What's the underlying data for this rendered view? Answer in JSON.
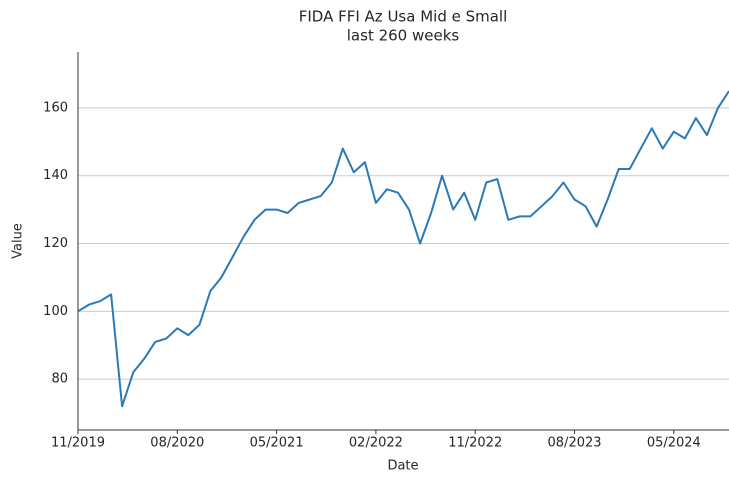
{
  "chart_data": {
    "type": "line",
    "title": "FIDA FFI Az Usa Mid e Small",
    "subtitle": "last 260 weeks",
    "x_label": "Date",
    "y_label": "Value",
    "x": [
      "2019-11",
      "2019-12",
      "2020-01",
      "2020-02",
      "2020-03",
      "2020-04",
      "2020-05",
      "2020-06",
      "2020-07",
      "2020-08",
      "2020-09",
      "2020-10",
      "2020-11",
      "2020-12",
      "2021-01",
      "2021-02",
      "2021-03",
      "2021-04",
      "2021-05",
      "2021-06",
      "2021-07",
      "2021-08",
      "2021-09",
      "2021-10",
      "2021-11",
      "2021-12",
      "2022-01",
      "2022-02",
      "2022-03",
      "2022-04",
      "2022-05",
      "2022-06",
      "2022-07",
      "2022-08",
      "2022-09",
      "2022-10",
      "2022-11",
      "2022-12",
      "2023-01",
      "2023-02",
      "2023-03",
      "2023-04",
      "2023-05",
      "2023-06",
      "2023-07",
      "2023-08",
      "2023-09",
      "2023-10",
      "2023-11",
      "2023-12",
      "2024-01",
      "2024-02",
      "2024-03",
      "2024-04",
      "2024-05",
      "2024-06",
      "2024-07",
      "2024-08",
      "2024-09",
      "2024-10"
    ],
    "series": [
      {
        "name": "Value",
        "color": "#2a7ab8",
        "values": [
          100,
          102,
          103,
          105,
          72,
          82,
          86,
          91,
          92,
          95,
          93,
          96,
          106,
          110,
          116,
          122,
          127,
          130,
          130,
          129,
          132,
          133,
          134,
          138,
          148,
          141,
          144,
          132,
          136,
          135,
          130,
          120,
          129,
          140,
          130,
          135,
          127,
          138,
          139,
          127,
          128,
          128,
          131,
          134,
          138,
          133,
          131,
          125,
          133,
          142,
          142,
          148,
          154,
          148,
          153,
          151,
          157,
          152,
          160,
          165
        ]
      }
    ],
    "xlim": [
      "2019-11",
      "2024-10"
    ],
    "xticks": [
      {
        "value": "2019-11",
        "label": "11/2019"
      },
      {
        "value": "2020-08",
        "label": "08/2020"
      },
      {
        "value": "2021-05",
        "label": "05/2021"
      },
      {
        "value": "2022-02",
        "label": "02/2022"
      },
      {
        "value": "2022-11",
        "label": "11/2022"
      },
      {
        "value": "2023-08",
        "label": "08/2023"
      },
      {
        "value": "2024-05",
        "label": "05/2024"
      }
    ],
    "ylim": [
      65,
      176.5
    ],
    "yticks": [
      80,
      100,
      120,
      140,
      160
    ],
    "grid": true
  }
}
